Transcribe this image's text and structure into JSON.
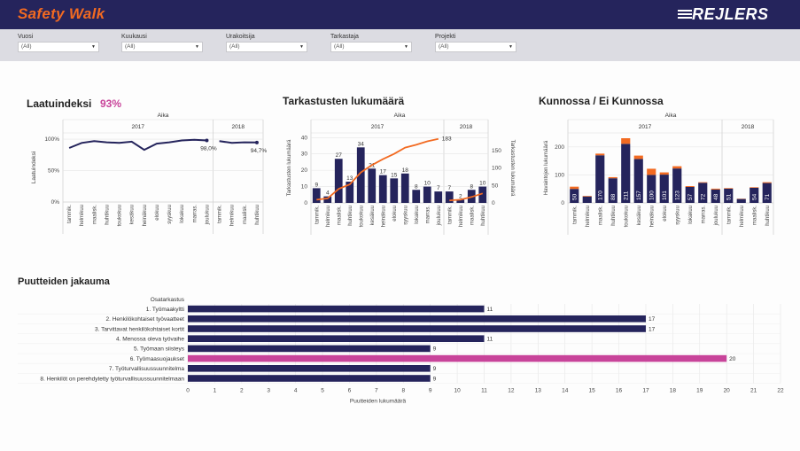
{
  "header": {
    "title": "Safety Walk",
    "logo_text": "REJLERS"
  },
  "filters": [
    {
      "label": "Vuosi",
      "value": "(All)"
    },
    {
      "label": "Kuukausi",
      "value": "(All)"
    },
    {
      "label": "Urakoitsija",
      "value": "(All)"
    },
    {
      "label": "Tarkastaja",
      "value": "(All)"
    },
    {
      "label": "Projekti",
      "value": "(All)"
    }
  ],
  "colors": {
    "navy": "#25245c",
    "orange": "#f26a21",
    "magenta": "#c8449a",
    "grid": "#e6e6e6"
  },
  "chart_data": [
    {
      "type": "line",
      "title": "Laatuindeksi",
      "title_value": "93%",
      "header": "Aika",
      "years": [
        "2017",
        "2018"
      ],
      "categories": [
        "tammik.",
        "helmikuu",
        "maalisk.",
        "huhtikuu",
        "toukokuu",
        "kesäkuu",
        "heinäkuu",
        "elokuu",
        "syyskuu",
        "lokakuu",
        "marras.",
        "joulukuu",
        "tammik.",
        "helmikuu",
        "maalisk.",
        "huhtikuu"
      ],
      "year_index": [
        0,
        0,
        0,
        0,
        0,
        0,
        0,
        0,
        0,
        0,
        0,
        0,
        1,
        1,
        1,
        1
      ],
      "values": [
        86,
        94,
        97,
        95,
        94,
        96,
        83,
        93,
        95,
        98,
        99,
        98,
        97,
        94,
        95,
        94.7
      ],
      "value_labels": [
        {
          "index": 11,
          "text": "98,0%"
        },
        {
          "index": 15,
          "text": "94,7%"
        }
      ],
      "ylabel": "Laatuindeksi",
      "yticks": [
        "0%",
        "50%",
        "100%"
      ],
      "ylim": [
        0,
        110
      ],
      "grid": true
    },
    {
      "type": "bar",
      "title": "Tarkastusten lukumäärä",
      "header": "Aika",
      "years": [
        "2017",
        "2018"
      ],
      "categories": [
        "tammik.",
        "helmikuu",
        "maalisk.",
        "huhtikuu",
        "toukokuu",
        "kesäkuu",
        "heinäkuu",
        "elokuu",
        "syyskuu",
        "lokakuu",
        "marras.",
        "joulukuu",
        "tammik.",
        "helmikuu",
        "maalisk.",
        "huhtikuu"
      ],
      "year_index": [
        0,
        0,
        0,
        0,
        0,
        0,
        0,
        0,
        0,
        0,
        0,
        0,
        1,
        1,
        1,
        1
      ],
      "values": [
        9,
        4,
        27,
        13,
        34,
        21,
        17,
        15,
        18,
        8,
        10,
        7,
        7,
        2,
        8,
        10
      ],
      "cumulative": [
        9,
        13,
        40,
        53,
        87,
        108,
        125,
        140,
        158,
        166,
        176,
        183,
        7,
        9,
        17,
        27
      ],
      "cumulative_label": {
        "index": 11,
        "text": "183"
      },
      "ylabel": "Tarkastusten lukumäärä",
      "ylabel_right": "Tarkastusten lukumäärä",
      "yticks_left": [
        "0",
        "10",
        "20",
        "30",
        "40"
      ],
      "yticks_right": [
        "0",
        "50",
        "100",
        "150"
      ],
      "ylim_left": [
        0,
        42
      ],
      "ylim_right": [
        0,
        200
      ],
      "grid": true
    },
    {
      "type": "bar",
      "title": "Kunnossa / Ei Kunnossa",
      "header": "Aika",
      "years": [
        "2017",
        "2018"
      ],
      "categories": [
        "tammik.",
        "helmikuu",
        "maalisk.",
        "huhtikuu",
        "toukokuu",
        "kesäkuu",
        "heinäkuu",
        "elokuu",
        "syyskuu",
        "lokakuu",
        "marras.",
        "joulukuu",
        "tammik.",
        "helmikuu",
        "maalisk.",
        "huhtikuu"
      ],
      "year_index": [
        0,
        0,
        0,
        0,
        0,
        0,
        0,
        0,
        0,
        0,
        0,
        0,
        1,
        1,
        1,
        1
      ],
      "series": [
        {
          "name": "Kunnossa",
          "values": [
            50,
            23,
            170,
            88,
            211,
            157,
            100,
            101,
            123,
            57,
            72,
            48,
            51,
            14,
            54,
            71
          ]
        },
        {
          "name": "Ei Kunnossa",
          "values": [
            8,
            2,
            6,
            4,
            20,
            12,
            22,
            8,
            8,
            3,
            2,
            3,
            2,
            1,
            2,
            3
          ]
        }
      ],
      "labels": [
        "50",
        "",
        "170",
        "88",
        "211",
        "157",
        "100",
        "101",
        "123",
        "57",
        "72",
        "48",
        "51",
        "",
        "54",
        "71"
      ],
      "ylabel": "Havaintojen lukumäärä",
      "yticks": [
        "0",
        "100",
        "200"
      ],
      "ylim": [
        0,
        250
      ],
      "grid": true
    },
    {
      "type": "bar",
      "orientation": "horizontal",
      "title": "Puutteiden jakauma",
      "row_header": "Osatarkastus",
      "categories": [
        "1. Työmaakyltti",
        "2. Henkilökohtaiset työvaatteet",
        "3. Tarvittavat henkilökohtaiset kortit",
        "4. Menossa oleva työvaihe",
        "5. Työmaan siisteys",
        "6. Työmaasuojaukset",
        "7. Työturvallisuussuunnitelma",
        "8. Henkilöt on perehdytetty työturvallisuussuunnitelmaan"
      ],
      "values": [
        11,
        17,
        17,
        11,
        9,
        20,
        9,
        9
      ],
      "highlight_index": 5,
      "xticks": [
        "0",
        "1",
        "2",
        "3",
        "4",
        "5",
        "6",
        "7",
        "8",
        "9",
        "10",
        "11",
        "12",
        "13",
        "14",
        "15",
        "16",
        "17",
        "18",
        "19",
        "20",
        "21",
        "22"
      ],
      "xlim": [
        0,
        22
      ],
      "xlabel": "Puutteiden lukumäärä",
      "grid": true
    }
  ]
}
